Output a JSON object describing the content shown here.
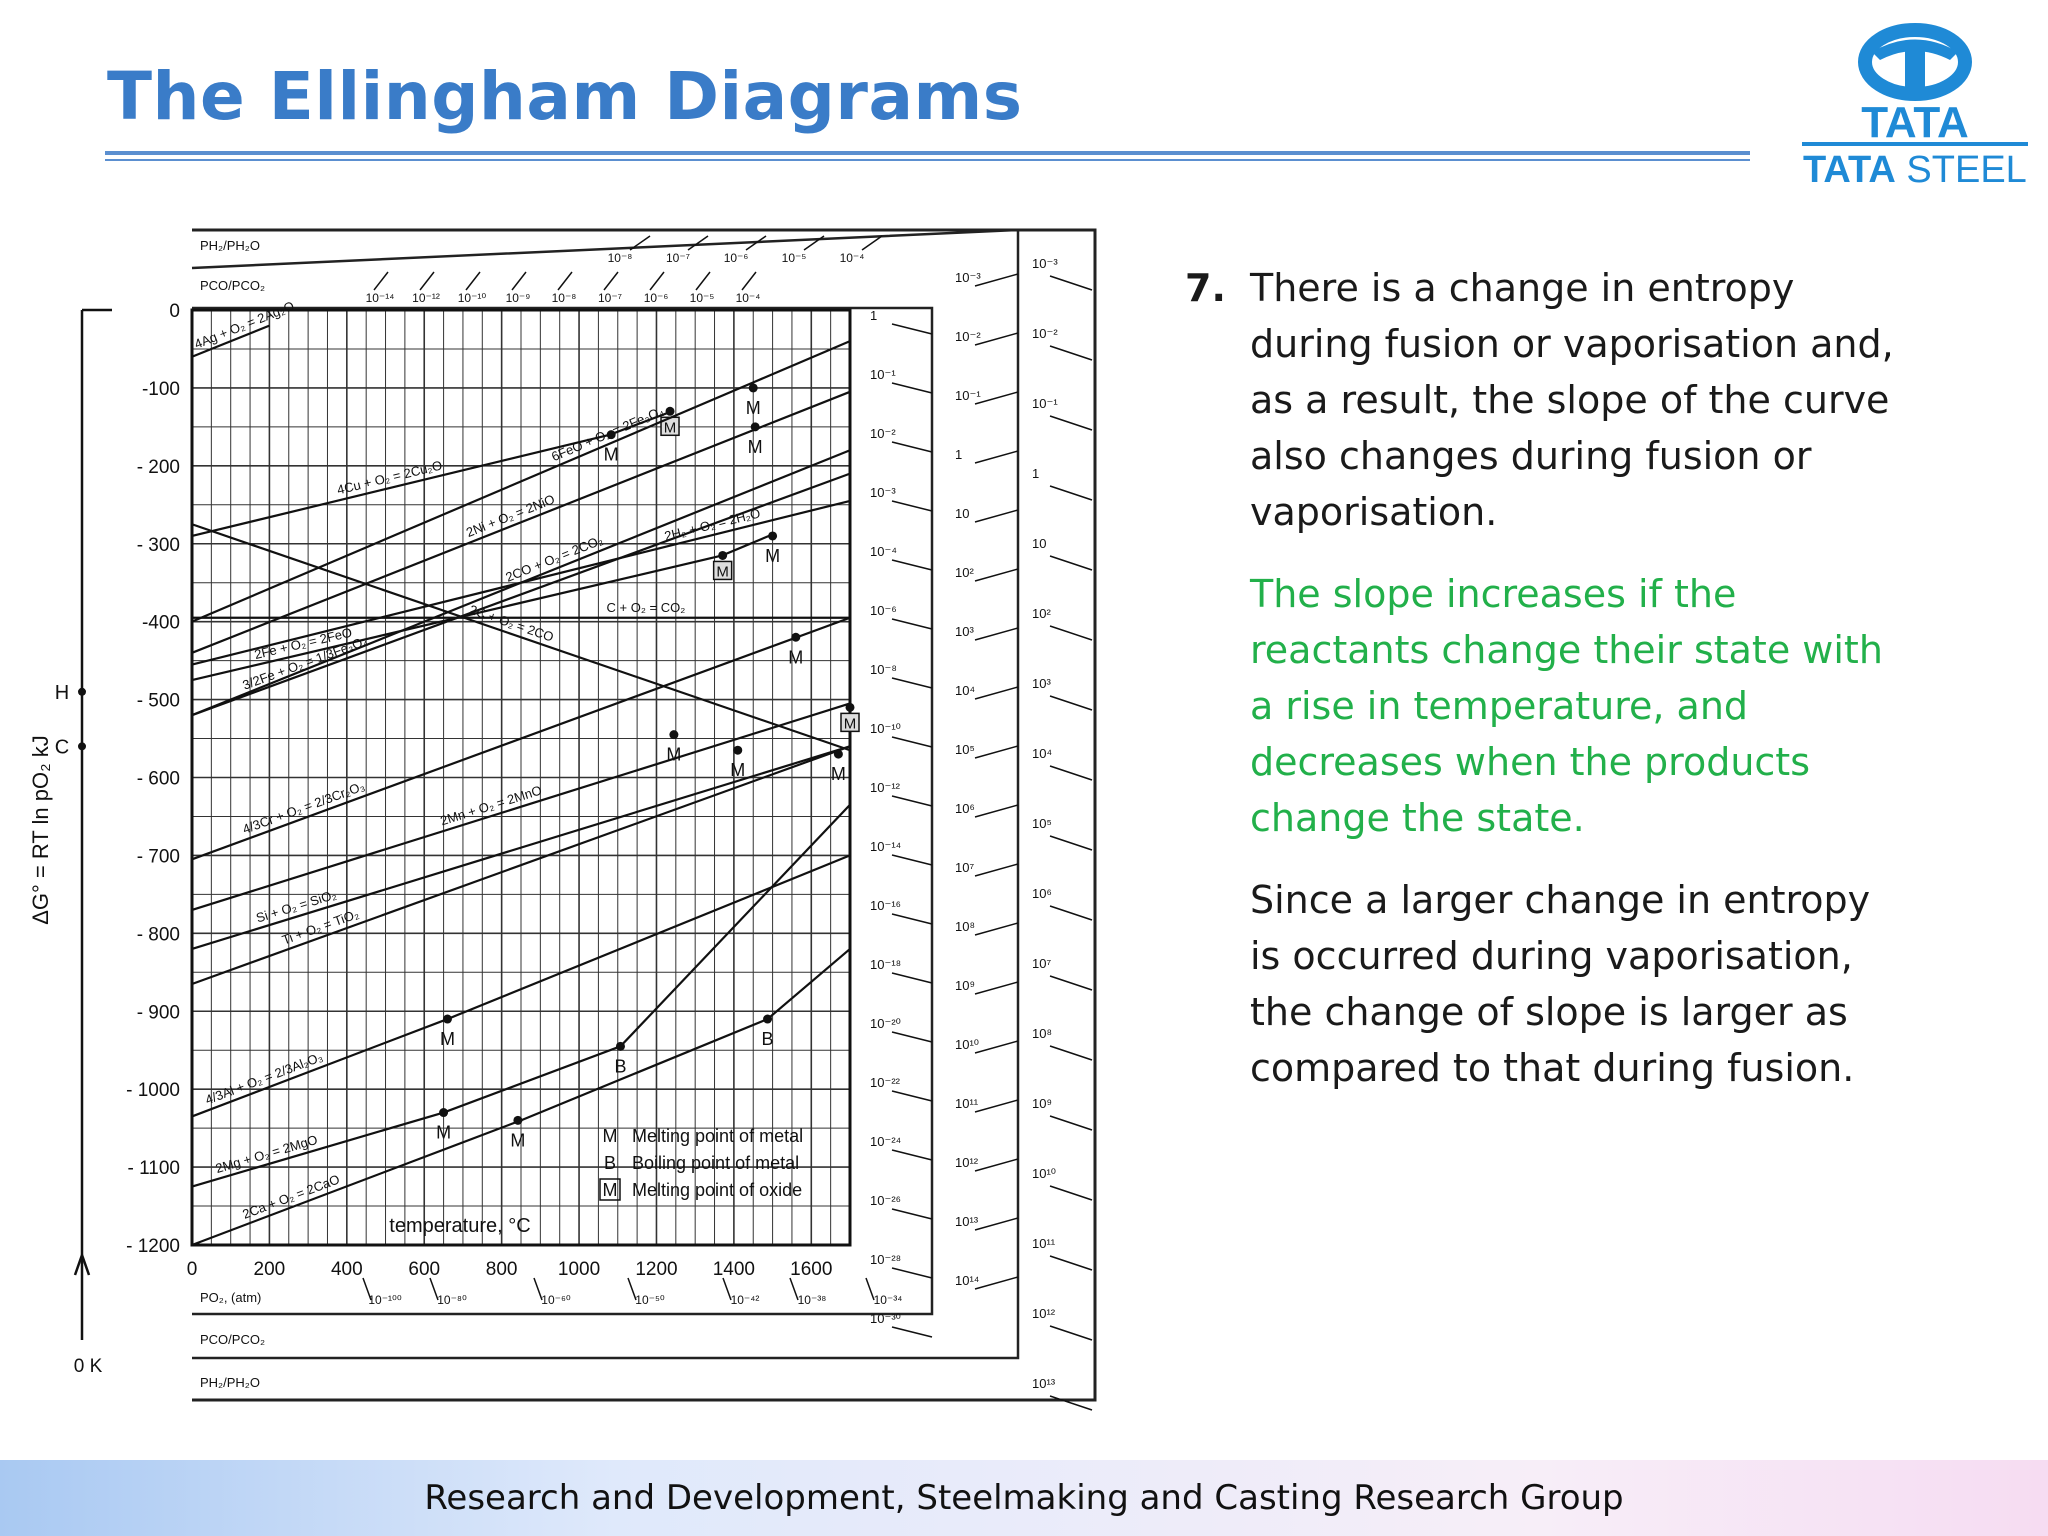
{
  "slide": {
    "title": "The Ellingham Diagrams",
    "footer": "Research and Development, Steelmaking and Casting Research Group",
    "logo": {
      "line1": "TATA",
      "line2a": "TATA",
      "line2b": " STEEL",
      "color": "#1f8ad6",
      "icon": "tata-logo-icon"
    }
  },
  "text": {
    "item_number": "7.",
    "point": [
      "There is a change in entropy",
      "during fusion or vaporisation and,",
      "as a result, the slope of the curve",
      "also changes during fusion or",
      "vaporisation."
    ],
    "green": [
      "The slope increases if the",
      "reactants change their state with",
      "a rise in temperature, and",
      "decreases when the products",
      "change the state."
    ],
    "note": [
      "Since a larger change in entropy",
      "is occurred during vaporisation,",
      "the change of slope is larger as",
      "compared to that during fusion."
    ]
  },
  "chart_data": {
    "type": "line",
    "xlabel": "temperature, °C",
    "ylabel": "ΔG° = RT ln pO₂ kJ",
    "xlim": [
      0,
      1700
    ],
    "ylim": [
      -1200,
      0
    ],
    "x_ticks": [
      0,
      200,
      400,
      600,
      800,
      1000,
      1200,
      1400,
      1600
    ],
    "y_ticks": [
      0,
      -100,
      -200,
      -300,
      -400,
      -500,
      -600,
      -700,
      -800,
      -900,
      -1000,
      -1100,
      -1200
    ],
    "y_tick_labels": [
      "0",
      "-100",
      "- 200",
      "- 300",
      "-400",
      "- 500",
      "- 600",
      "- 700",
      "- 800",
      "- 900",
      "- 1000",
      "- 1100",
      "- 1200"
    ],
    "grid": true,
    "left_axis_markers": {
      "H": -490,
      "C": -560,
      "origin": "0 K"
    },
    "series": [
      {
        "name": "4Ag + O₂ = 2Ag₂O",
        "points": [
          [
            0,
            -60
          ],
          [
            200,
            -20
          ]
        ]
      },
      {
        "name": "4Cu + O₂ = 2Cu₂O",
        "points": [
          [
            0,
            -290
          ],
          [
            1080,
            -160
          ],
          [
            1240,
            -130
          ]
        ],
        "markers": [
          {
            "x": 1083,
            "y": -160,
            "label": "M"
          },
          {
            "x": 1235,
            "y": -130,
            "label": "[M]"
          }
        ]
      },
      {
        "name": "2Fe + O₂ = 2FeO",
        "points": [
          [
            0,
            -475
          ],
          [
            1370,
            -315
          ],
          [
            1500,
            -288
          ]
        ],
        "markers": [
          {
            "x": 1371,
            "y": -315,
            "label": "[M]"
          }
        ]
      },
      {
        "name": "6FeO + O₂ = 2Fe₃O₄",
        "points": [
          [
            0,
            -400
          ],
          [
            1700,
            -40
          ]
        ],
        "markers": [
          {
            "x": 1450,
            "y": -100,
            "label": "M"
          }
        ]
      },
      {
        "name": "2Ni + O₂ = 2NiO",
        "points": [
          [
            0,
            -440
          ],
          [
            1700,
            -105
          ]
        ],
        "markers": [
          {
            "x": 1455,
            "y": -150,
            "label": "M"
          }
        ]
      },
      {
        "name": "2CO + O₂ = 2CO₂",
        "points": [
          [
            0,
            -520
          ],
          [
            1700,
            -180
          ]
        ]
      },
      {
        "name": "2H₂ + O₂ = 2H₂O",
        "points": [
          [
            0,
            -455
          ],
          [
            1700,
            -245
          ]
        ],
        "markers": [
          {
            "x": 1500,
            "y": -290,
            "label": "M"
          }
        ]
      },
      {
        "name": "C + O₂ = CO₂",
        "points": [
          [
            0,
            -395
          ],
          [
            1700,
            -395
          ]
        ]
      },
      {
        "name": "2C + O₂ = 2CO",
        "points": [
          [
            0,
            -275
          ],
          [
            1700,
            -565
          ]
        ]
      },
      {
        "name": "3/2Fe + O₂ = 1/3Fe₃O₄",
        "points": [
          [
            0,
            -520
          ],
          [
            1700,
            -210
          ]
        ]
      },
      {
        "name": "4/3Cr + O₂ = 2/3Cr₂O₃",
        "points": [
          [
            0,
            -705
          ],
          [
            1700,
            -395
          ]
        ],
        "markers": [
          {
            "x": 1560,
            "y": -420,
            "label": "M"
          }
        ]
      },
      {
        "name": "2Mn + O₂ = 2MnO",
        "points": [
          [
            0,
            -770
          ],
          [
            1700,
            -505
          ]
        ],
        "markers": [
          {
            "x": 1245,
            "y": -545,
            "label": "M"
          },
          {
            "x": 1700,
            "y": -510,
            "label": "[M]"
          }
        ]
      },
      {
        "name": "Si + O₂ = SiO₂",
        "points": [
          [
            0,
            -820
          ],
          [
            1700,
            -560
          ]
        ],
        "markers": [
          {
            "x": 1410,
            "y": -565,
            "label": "M"
          }
        ]
      },
      {
        "name": "Ti + O₂ = TiO₂",
        "points": [
          [
            0,
            -865
          ],
          [
            1700,
            -560
          ]
        ],
        "markers": [
          {
            "x": 1670,
            "y": -570,
            "label": "M"
          }
        ]
      },
      {
        "name": "4/3Al + O₂ = 2/3Al₂O₃",
        "points": [
          [
            0,
            -1035
          ],
          [
            660,
            -910
          ],
          [
            1700,
            -700
          ]
        ],
        "markers": [
          {
            "x": 660,
            "y": -910,
            "label": "M"
          }
        ]
      },
      {
        "name": "2Mg + O₂ = 2MgO",
        "points": [
          [
            0,
            -1125
          ],
          [
            650,
            -1030
          ],
          [
            1107,
            -945
          ],
          [
            1700,
            -635
          ]
        ],
        "markers": [
          {
            "x": 650,
            "y": -1030,
            "label": "M"
          },
          {
            "x": 1107,
            "y": -945,
            "label": "B"
          }
        ]
      },
      {
        "name": "2Ca + O₂ = 2CaO",
        "points": [
          [
            0,
            -1200
          ],
          [
            850,
            -1040
          ],
          [
            1487,
            -910
          ],
          [
            1700,
            -820
          ]
        ],
        "markers": [
          {
            "x": 842,
            "y": -1040,
            "label": "M"
          },
          {
            "x": 1487,
            "y": -910,
            "label": "B"
          }
        ]
      }
    ],
    "legend": [
      {
        "symbol": "M",
        "text": "Melting point of metal"
      },
      {
        "symbol": "B",
        "text": "Boiling point of metal"
      },
      {
        "symbol": "[M]",
        "text": "Melting point of oxide"
      }
    ],
    "nomograph_labels": {
      "top_h2": "PH₂/PH₂O",
      "top_co": "PCO/PCO₂",
      "bottom_po2": "PO₂, (atm)",
      "bottom_co": "PCO/PCO₂",
      "bottom_h2": "PH₂/PH₂O"
    },
    "scale_po2_right": [
      "1",
      "10⁻¹",
      "10⁻²",
      "10⁻³",
      "10⁻⁴",
      "10⁻⁶",
      "10⁻⁸",
      "10⁻¹⁰",
      "10⁻¹²",
      "10⁻¹⁴",
      "10⁻¹⁶",
      "10⁻¹⁸",
      "10⁻²⁰",
      "10⁻²²",
      "10⁻²⁴",
      "10⁻²⁶",
      "10⁻²⁸",
      "10⁻³⁰"
    ],
    "scale_co_right": [
      "10⁻³",
      "10⁻²",
      "10⁻¹",
      "1",
      "10",
      "10²",
      "10³",
      "10⁴",
      "10⁵",
      "10⁶",
      "10⁷",
      "10⁸",
      "10⁹",
      "10¹⁰",
      "10¹¹",
      "10¹²",
      "10¹³",
      "10¹⁴"
    ],
    "scale_h2_right": [
      "10⁻³",
      "10⁻²",
      "10⁻¹",
      "1",
      "10",
      "10²",
      "10³",
      "10⁴",
      "10⁵",
      "10⁶",
      "10⁷",
      "10⁸",
      "10⁹",
      "10¹⁰",
      "10¹¹",
      "10¹²",
      "10¹³"
    ],
    "scale_co_top": [
      "10⁻¹⁴",
      "10⁻¹²",
      "10⁻¹⁰",
      "10⁻⁹",
      "10⁻⁸",
      "10⁻⁷",
      "10⁻⁶",
      "10⁻⁵",
      "10⁻⁴"
    ],
    "scale_h2_top": [
      "10⁻⁸",
      "10⁻⁷",
      "10⁻⁶",
      "10⁻⁵",
      "10⁻⁴"
    ],
    "scale_po2_bottom": [
      "10⁻¹⁰⁰",
      "10⁻⁸⁰",
      "10⁻⁶⁰",
      "10⁻⁵⁰",
      "10⁻⁴²",
      "10⁻³⁸",
      "10⁻³⁴"
    ]
  }
}
